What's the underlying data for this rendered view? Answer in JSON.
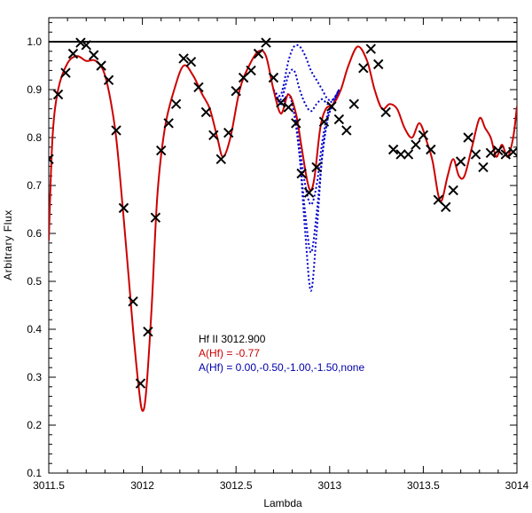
{
  "chart_data": {
    "type": "line",
    "xlabel": "Lambda",
    "ylabel": "Arbitrary Flux",
    "xlim": [
      3011.5,
      3014
    ],
    "ylim": [
      0.1,
      1.05
    ],
    "x_ticks": [
      3011.5,
      3012,
      3012.5,
      3013,
      3013.5,
      3014
    ],
    "x_tick_labels": [
      "3011.5",
      "3012",
      "3012.5",
      "3013",
      "3013.5",
      "3014"
    ],
    "y_ticks": [
      0.1,
      0.2,
      0.3,
      0.4,
      0.5,
      0.6,
      0.7,
      0.8,
      0.9,
      1.0
    ],
    "y_tick_labels": [
      "0.1",
      "0.2",
      "0.3",
      "0.4",
      "0.5",
      "0.6",
      "0.7",
      "0.8",
      "0.9",
      "1.0"
    ],
    "grid": false,
    "continuum_level": 1.0,
    "legend": {
      "placement": "center",
      "lines": [
        {
          "text": "Hf II 3012.900",
          "color": "#000000"
        },
        {
          "text": "A(Hf) = -0.77",
          "color": "#cc0000"
        },
        {
          "text": "A(Hf) = 0.00,-0.50,-1.00,-1.50,none",
          "color": "#0000aa"
        }
      ]
    },
    "observed": {
      "marker": "x",
      "color": "#000000",
      "x": [
        3011.5,
        3011.55,
        3011.59,
        3011.63,
        3011.67,
        3011.7,
        3011.74,
        3011.78,
        3011.82,
        3011.86,
        3011.9,
        3011.95,
        3011.99,
        3012.03,
        3012.07,
        3012.1,
        3012.14,
        3012.18,
        3012.22,
        3012.26,
        3012.3,
        3012.34,
        3012.38,
        3012.42,
        3012.46,
        3012.5,
        3012.54,
        3012.58,
        3012.62,
        3012.66,
        3012.7,
        3012.74,
        3012.78,
        3012.82,
        3012.85,
        3012.89,
        3012.93,
        3012.97,
        3013.01,
        3013.05,
        3013.09,
        3013.13,
        3013.18,
        3013.22,
        3013.26,
        3013.3,
        3013.34,
        3013.38,
        3013.42,
        3013.46,
        3013.5,
        3013.54,
        3013.58,
        3013.62,
        3013.66,
        3013.7,
        3013.74,
        3013.78,
        3013.82,
        3013.86,
        3013.9,
        3013.94,
        3013.98
      ],
      "y": [
        0.755,
        0.89,
        0.935,
        0.975,
        0.998,
        0.993,
        0.972,
        0.95,
        0.92,
        0.815,
        0.653,
        0.458,
        0.287,
        0.395,
        0.633,
        0.773,
        0.83,
        0.87,
        0.965,
        0.958,
        0.905,
        0.853,
        0.805,
        0.755,
        0.81,
        0.897,
        0.925,
        0.94,
        0.975,
        0.998,
        0.925,
        0.873,
        0.863,
        0.83,
        0.725,
        0.685,
        0.738,
        0.833,
        0.865,
        0.838,
        0.815,
        0.87,
        0.945,
        0.985,
        0.953,
        0.853,
        0.775,
        0.765,
        0.765,
        0.785,
        0.805,
        0.775,
        0.67,
        0.655,
        0.69,
        0.75,
        0.8,
        0.765,
        0.738,
        0.768,
        0.773,
        0.765,
        0.77
      ]
    },
    "series": [
      {
        "style": "solid",
        "color": "#cc0000",
        "x": [
          3011.5,
          3011.52,
          3011.55,
          3011.6,
          3011.65,
          3011.7,
          3011.75,
          3011.8,
          3011.85,
          3011.88,
          3011.92,
          3011.95,
          3011.98,
          3012.0,
          3012.02,
          3012.05,
          3012.08,
          3012.12,
          3012.17,
          3012.22,
          3012.27,
          3012.32,
          3012.36,
          3012.4,
          3012.43,
          3012.47,
          3012.52,
          3012.57,
          3012.62,
          3012.66,
          3012.7,
          3012.74,
          3012.78,
          3012.82,
          3012.85,
          3012.88,
          3012.9,
          3012.92,
          3012.95,
          3012.98,
          3013.02,
          3013.06,
          3013.1,
          3013.15,
          3013.2,
          3013.24,
          3013.28,
          3013.32,
          3013.36,
          3013.4,
          3013.44,
          3013.48,
          3013.52,
          3013.55,
          3013.58,
          3013.6,
          3013.63,
          3013.66,
          3013.69,
          3013.72,
          3013.76,
          3013.8,
          3013.83,
          3013.86,
          3013.89,
          3013.92,
          3013.95,
          3013.98,
          3014.0
        ],
        "y": [
          0.585,
          0.8,
          0.9,
          0.955,
          0.97,
          0.96,
          0.96,
          0.93,
          0.83,
          0.72,
          0.54,
          0.4,
          0.28,
          0.23,
          0.27,
          0.45,
          0.68,
          0.82,
          0.9,
          0.95,
          0.93,
          0.89,
          0.86,
          0.8,
          0.76,
          0.8,
          0.9,
          0.95,
          0.98,
          0.97,
          0.9,
          0.85,
          0.89,
          0.85,
          0.78,
          0.71,
          0.69,
          0.72,
          0.82,
          0.86,
          0.87,
          0.9,
          0.95,
          0.99,
          0.96,
          0.9,
          0.86,
          0.87,
          0.86,
          0.82,
          0.8,
          0.83,
          0.79,
          0.75,
          0.68,
          0.67,
          0.72,
          0.755,
          0.72,
          0.72,
          0.78,
          0.84,
          0.82,
          0.8,
          0.76,
          0.785,
          0.76,
          0.8,
          0.865
        ]
      },
      {
        "style": "dotted",
        "color": "#0000cc",
        "x": [
          3012.7,
          3012.74,
          3012.78,
          3012.81,
          3012.84,
          3012.87,
          3012.9,
          3012.93,
          3012.96,
          3012.99,
          3013.02,
          3013.05
        ],
        "y": [
          0.9,
          0.87,
          0.89,
          0.86,
          0.76,
          0.6,
          0.48,
          0.6,
          0.76,
          0.84,
          0.87,
          0.9
        ]
      },
      {
        "style": "dotted",
        "color": "#0000cc",
        "x": [
          3012.7,
          3012.74,
          3012.78,
          3012.81,
          3012.84,
          3012.87,
          3012.9,
          3012.93,
          3012.96,
          3012.99,
          3013.02,
          3013.05
        ],
        "y": [
          0.9,
          0.87,
          0.89,
          0.85,
          0.76,
          0.64,
          0.56,
          0.64,
          0.76,
          0.84,
          0.87,
          0.9
        ]
      },
      {
        "style": "dotted",
        "color": "#0000cc",
        "x": [
          3012.7,
          3012.74,
          3012.78,
          3012.81,
          3012.84,
          3012.87,
          3012.9,
          3012.93,
          3012.96,
          3012.99,
          3013.02,
          3013.05
        ],
        "y": [
          0.9,
          0.87,
          0.89,
          0.86,
          0.78,
          0.7,
          0.66,
          0.7,
          0.79,
          0.85,
          0.87,
          0.9
        ]
      },
      {
        "style": "dotted",
        "color": "#0000cc",
        "x": [
          3012.7,
          3012.74,
          3012.78,
          3012.81,
          3012.84,
          3012.87,
          3012.9,
          3012.93,
          3012.96,
          3012.99,
          3013.02,
          3013.05
        ],
        "y": [
          0.9,
          0.88,
          0.93,
          0.94,
          0.9,
          0.87,
          0.855,
          0.87,
          0.88,
          0.87,
          0.88,
          0.9
        ]
      },
      {
        "style": "dotted",
        "color": "#0000cc",
        "x": [
          3012.7,
          3012.74,
          3012.78,
          3012.81,
          3012.84,
          3012.87,
          3012.9,
          3012.93,
          3012.96,
          3012.99,
          3013.02,
          3013.05
        ],
        "y": [
          0.9,
          0.89,
          0.96,
          0.99,
          0.99,
          0.97,
          0.94,
          0.92,
          0.9,
          0.88,
          0.88,
          0.9
        ]
      }
    ]
  }
}
